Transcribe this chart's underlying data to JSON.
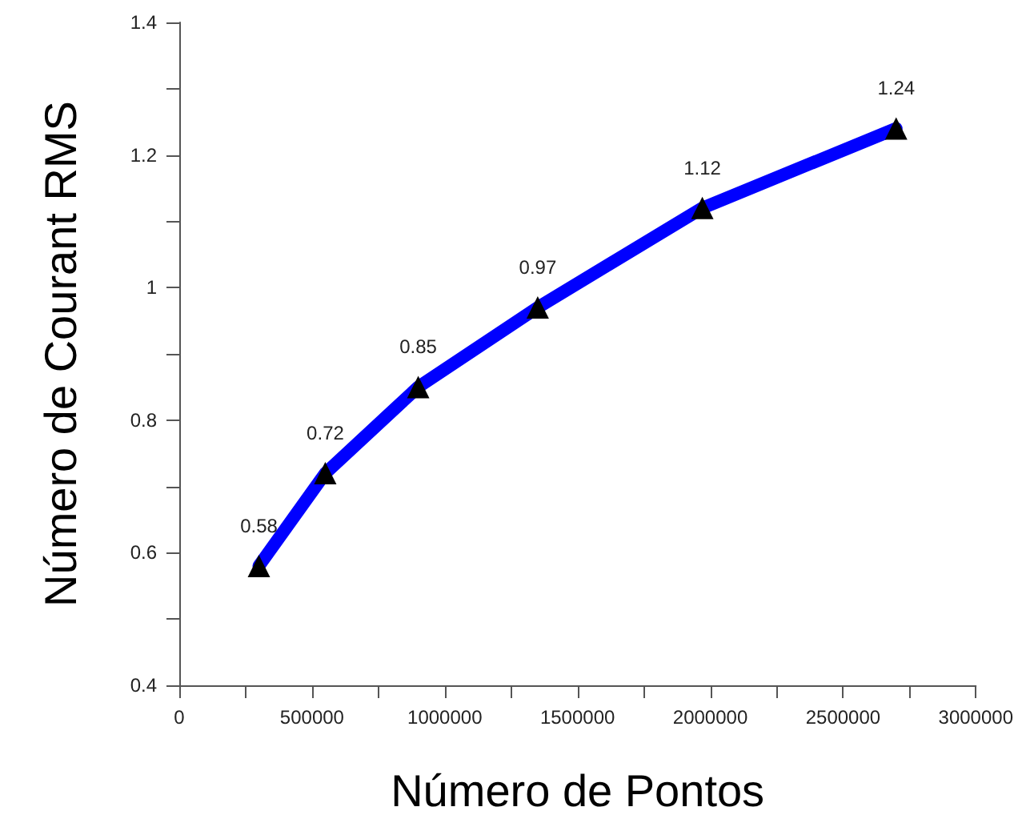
{
  "chart_data": {
    "type": "line",
    "xlabel": "Número de Pontos",
    "ylabel": "Número de Courant RMS",
    "x": [
      300000,
      550000,
      900000,
      1350000,
      1970000,
      2700000
    ],
    "series": [
      {
        "color": "#0000ff",
        "colors": [
          "#000000",
          "#000000",
          "#000000",
          "#000000",
          "#000000",
          "#000000"
        ],
        "values": [
          0.58,
          0.72,
          0.85,
          0.97,
          1.12,
          1.24
        ]
      }
    ],
    "marker": "triangle",
    "line_style": "solid",
    "data_labels": true,
    "xlim": [
      0,
      3000000
    ],
    "xticks": [
      0,
      {
        "value": 250000,
        "label": null
      },
      500000,
      {
        "value": 750000,
        "label": null
      },
      1000000,
      {
        "value": 1250000,
        "label": null
      },
      1500000,
      {
        "value": 1750000,
        "label": null
      },
      2000000,
      {
        "value": 2250000,
        "label": null
      },
      2500000,
      {
        "value": 2750000,
        "label": null
      },
      3000000
    ],
    "ylim": [
      0.4,
      1.4
    ],
    "yticks": [
      0.4,
      {
        "value": 0.5,
        "label": null
      },
      0.6,
      {
        "value": 0.7,
        "label": null
      },
      0.8,
      {
        "value": 0.9,
        "label": null
      },
      1,
      {
        "value": 1.1,
        "label": null
      },
      1.2,
      {
        "value": 1.3,
        "label": null
      },
      1.4
    ]
  }
}
